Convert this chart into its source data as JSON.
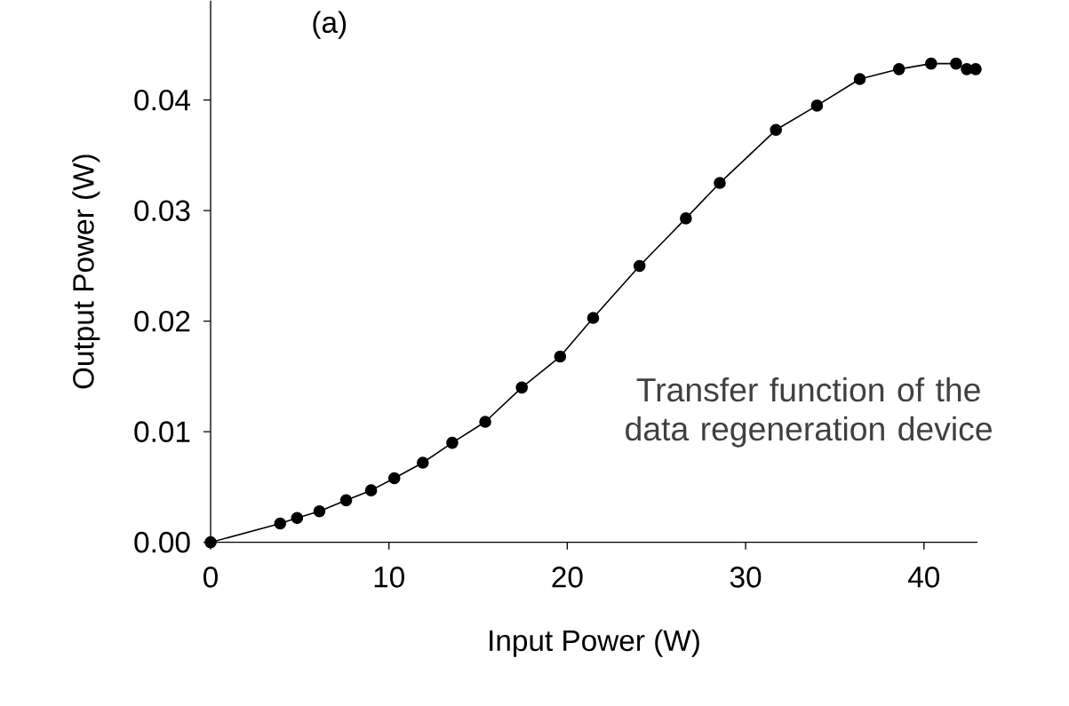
{
  "chart_data": {
    "type": "line",
    "xlabel": "Input Power (W)",
    "ylabel": "Output Power (W)",
    "annotations": [
      "(a)",
      "Transfer function of the data regeneration device"
    ],
    "x": [
      0,
      3.9,
      4.85,
      6.1,
      7.6,
      9.0,
      10.3,
      11.9,
      13.55,
      15.4,
      17.45,
      19.6,
      21.45,
      24.05,
      26.65,
      28.55,
      31.7,
      34.0,
      36.4,
      38.6,
      40.4,
      41.8,
      42.4,
      42.9
    ],
    "series": [
      {
        "color": "#000000",
        "values": [
          0,
          0.0017,
          0.0022,
          0.0028,
          0.0038,
          0.0047,
          0.0058,
          0.0072,
          0.009,
          0.0109,
          0.014,
          0.0168,
          0.0203,
          0.025,
          0.0293,
          0.0325,
          0.0373,
          0.0395,
          0.0419,
          0.0428,
          0.0433,
          0.0433,
          0.0428,
          0.0428
        ]
      }
    ],
    "xlim": [
      0,
      43
    ],
    "ylim": [
      0,
      0.049
    ],
    "xticks": [
      0,
      10,
      20,
      30,
      40
    ],
    "yticks": [
      {
        "value": 0,
        "label": "0.00"
      },
      {
        "value": 0.01,
        "label": "0.01"
      },
      {
        "value": 0.02,
        "label": "0.02"
      },
      {
        "value": 0.03,
        "label": "0.03"
      },
      {
        "value": 0.04,
        "label": "0.04"
      }
    ],
    "marker": "circle",
    "line_style": "solid"
  }
}
